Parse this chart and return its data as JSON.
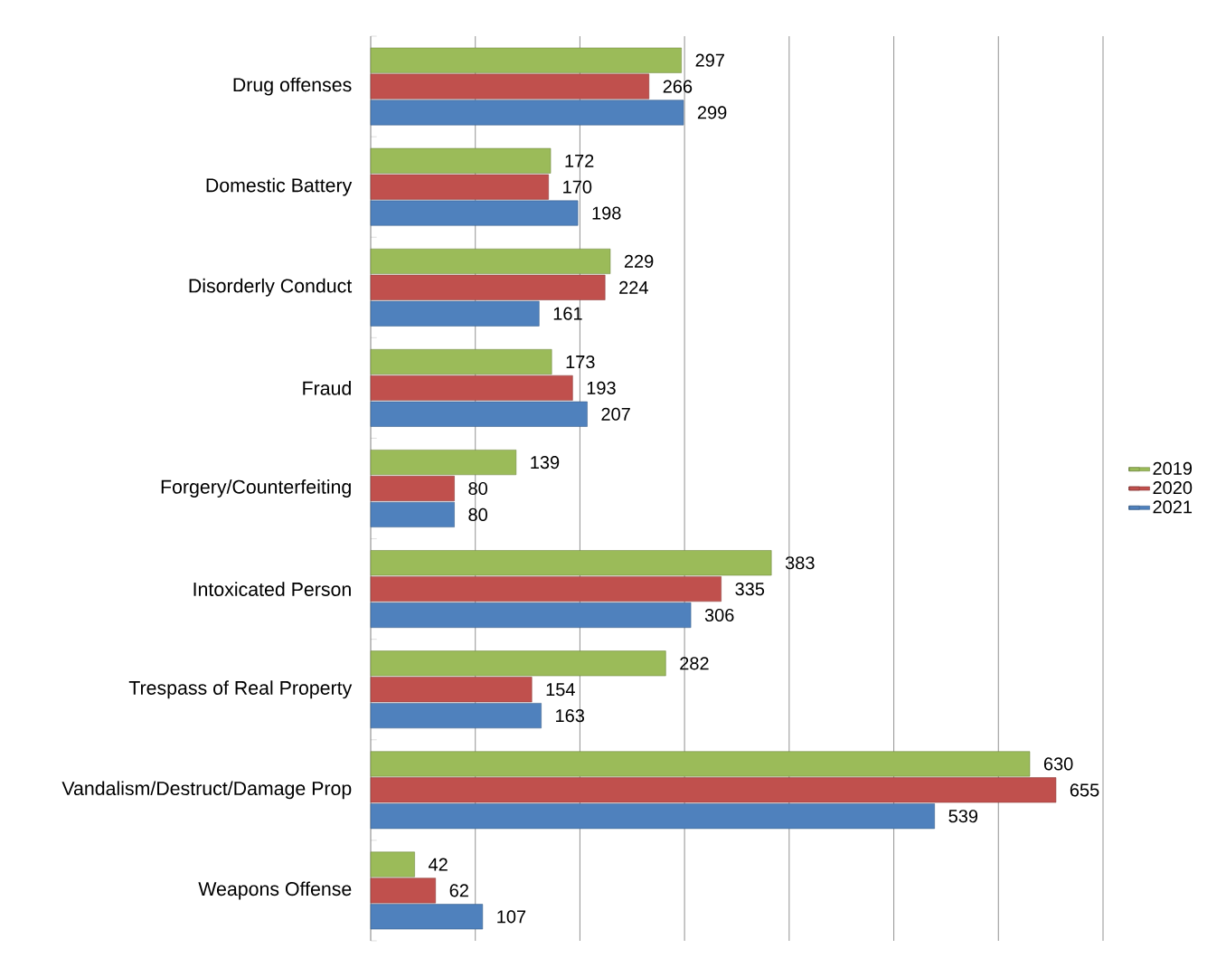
{
  "chart_data": {
    "type": "bar",
    "orientation": "horizontal",
    "categories": [
      "Drug offenses",
      "Domestic Battery",
      "Disorderly Conduct",
      "Fraud",
      "Forgery/Counterfeiting",
      "Intoxicated Person",
      "Trespass of Real Property",
      "Vandalism/Destruct/Damage Prop",
      "Weapons Offense"
    ],
    "series": [
      {
        "name": "2019",
        "color": "#9bbb59",
        "values": [
          297,
          172,
          229,
          173,
          139,
          383,
          282,
          630,
          42
        ]
      },
      {
        "name": "2020",
        "color": "#c0504d",
        "values": [
          266,
          170,
          224,
          193,
          80,
          335,
          154,
          655,
          62
        ]
      },
      {
        "name": "2021",
        "color": "#4f81bd",
        "values": [
          299,
          198,
          161,
          207,
          80,
          306,
          163,
          539,
          107
        ]
      }
    ],
    "xlim": [
      0,
      700
    ],
    "xticks": [
      {
        "value": 0,
        "label": null
      },
      {
        "value": 100,
        "label": null
      },
      {
        "value": 200,
        "label": null
      },
      {
        "value": 300,
        "label": null
      },
      {
        "value": 400,
        "label": null
      },
      {
        "value": 500,
        "label": null
      },
      {
        "value": 600,
        "label": null
      },
      {
        "value": 700,
        "label": null
      }
    ],
    "tick_labels": "y",
    "grid": "x",
    "legend": "right",
    "data_labels": true
  }
}
